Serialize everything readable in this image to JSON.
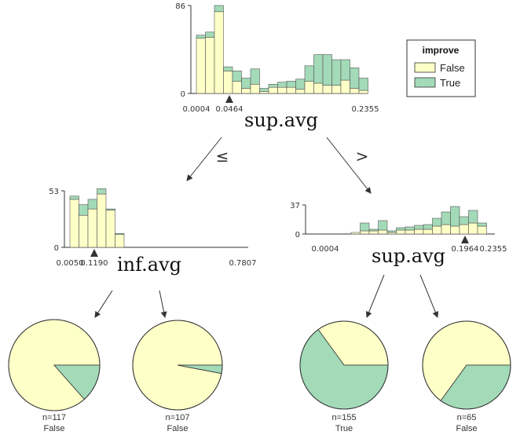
{
  "colors": {
    "false_fill": "#ffffc8",
    "true_fill": "#a3dab8",
    "stroke": "#333333"
  },
  "legend": {
    "title": "improve",
    "items": [
      "False",
      "True"
    ]
  },
  "edges": {
    "left": "≤",
    "right": ">"
  },
  "chart_data": [
    {
      "node": "root",
      "type": "bar",
      "title": "sup.avg",
      "ytop_label": "86",
      "y0_label": "0",
      "ylim": [
        0,
        86
      ],
      "x_ticks": [
        "0.0004",
        "0.0464",
        "0.2355"
      ],
      "split_label": "0.0464",
      "series": [
        {
          "name": "False",
          "values": [
            54,
            55,
            80,
            22,
            12,
            5,
            9,
            2,
            6,
            6,
            6,
            4,
            12,
            10,
            8,
            8,
            13,
            5,
            3
          ]
        },
        {
          "name": "True",
          "values": [
            3,
            5,
            6,
            4,
            10,
            10,
            15,
            3,
            3,
            5,
            6,
            10,
            15,
            28,
            30,
            25,
            20,
            20,
            12
          ]
        }
      ]
    },
    {
      "node": "left",
      "type": "bar",
      "title": "inf.avg",
      "ytop_label": "53",
      "y0_label": "0",
      "ylim": [
        0,
        53
      ],
      "x_ticks": [
        "0.0050",
        "0.1190",
        "0.7807"
      ],
      "split_label": "0.1190",
      "series": [
        {
          "name": "False",
          "values": [
            45,
            30,
            36,
            50,
            35,
            12
          ]
        },
        {
          "name": "True",
          "values": [
            3,
            10,
            9,
            5,
            1,
            1
          ]
        }
      ]
    },
    {
      "node": "right",
      "type": "bar",
      "title": "sup.avg",
      "ytop_label": "37",
      "y0_label": "0",
      "ylim": [
        0,
        37
      ],
      "x_ticks": [
        "0.0004",
        "0.1964",
        "0.2355"
      ],
      "split_label": "0.1964",
      "series": [
        {
          "name": "False",
          "values": [
            2,
            4,
            4,
            5,
            2,
            5,
            5,
            6,
            6,
            10,
            12,
            10,
            12,
            14,
            10
          ]
        },
        {
          "name": "True",
          "values": [
            0,
            10,
            2,
            12,
            2,
            3,
            4,
            5,
            6,
            10,
            16,
            25,
            10,
            16,
            4
          ]
        }
      ]
    },
    {
      "node": "leaf1",
      "type": "pie",
      "n_label": "n=117",
      "class_label": "False",
      "slices": [
        {
          "name": "False",
          "value": 0.865
        },
        {
          "name": "True",
          "value": 0.135
        }
      ]
    },
    {
      "node": "leaf2",
      "type": "pie",
      "n_label": "n=107",
      "class_label": "False",
      "slices": [
        {
          "name": "False",
          "value": 0.97
        },
        {
          "name": "True",
          "value": 0.03
        }
      ]
    },
    {
      "node": "leaf3",
      "type": "pie",
      "n_label": "n=155",
      "class_label": "True",
      "slices": [
        {
          "name": "False",
          "value": 0.35
        },
        {
          "name": "True",
          "value": 0.65
        }
      ]
    },
    {
      "node": "leaf4",
      "type": "pie",
      "n_label": "n=65",
      "class_label": "False",
      "slices": [
        {
          "name": "False",
          "value": 0.65
        },
        {
          "name": "True",
          "value": 0.35
        }
      ]
    }
  ]
}
